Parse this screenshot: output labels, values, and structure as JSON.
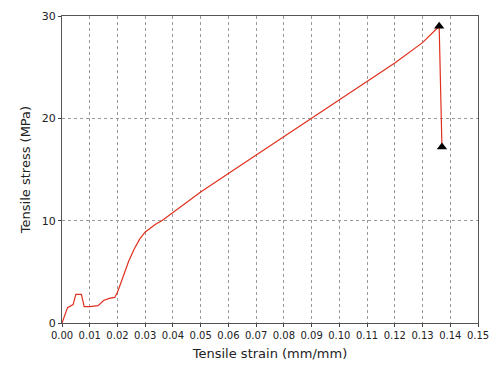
{
  "chart_data": {
    "type": "line",
    "x_label": "Tensile strain (mm/mm)",
    "y_label": "Tensile stress (MPa)",
    "xlim": [
      0,
      0.15
    ],
    "ylim": [
      0,
      30
    ],
    "xticks": [
      {
        "value": 0,
        "label": "0.00"
      },
      0.01,
      0.02,
      0.03,
      0.04,
      0.05,
      0.06,
      0.07,
      0.08,
      0.09,
      {
        "value": 0.1,
        "label": "0.10"
      },
      0.11,
      0.12,
      0.13,
      0.14,
      0.15
    ],
    "yticks": [
      0,
      10,
      20,
      30
    ],
    "grid": true,
    "series": [
      {
        "type": "line",
        "color": "#e0301e",
        "marker": "none",
        "line_style": "solid",
        "x": [
          0,
          0.002,
          0.004,
          0.005,
          0.007,
          0.008,
          0.01,
          0.013,
          0.015,
          0.017,
          0.019,
          0.02,
          0.022,
          0.024,
          0.026,
          0.028,
          0.03,
          0.032,
          0.034,
          0.036,
          0.04,
          0.05,
          0.06,
          0.07,
          0.08,
          0.09,
          0.1,
          0.11,
          0.12,
          0.13,
          0.136,
          0.137
        ],
        "values": [
          0,
          1.5,
          1.8,
          2.8,
          2.8,
          1.6,
          1.6,
          1.7,
          2.2,
          2.4,
          2.5,
          3.0,
          4.5,
          6.0,
          7.2,
          8.2,
          8.9,
          9.3,
          9.7,
          10.0,
          10.8,
          12.8,
          14.6,
          16.4,
          18.2,
          20.0,
          21.8,
          23.6,
          25.4,
          27.4,
          29.0,
          17.2
        ]
      },
      {
        "type": "scatter",
        "color": "#000000",
        "marker": "triangle",
        "x": [
          0.136,
          0.137
        ],
        "values": [
          29.0,
          17.2
        ]
      }
    ]
  }
}
